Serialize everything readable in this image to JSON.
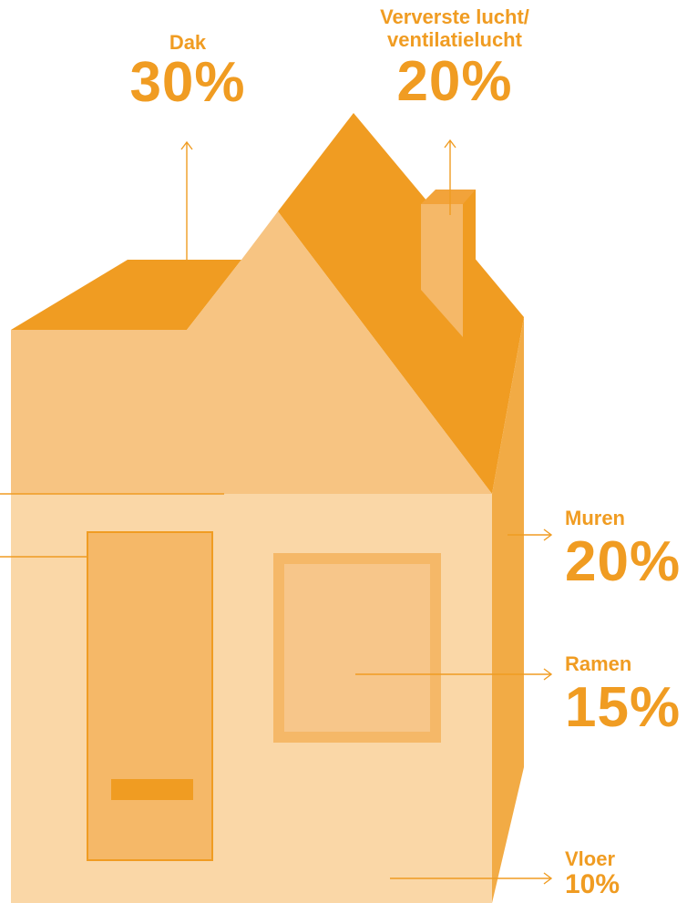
{
  "colors": {
    "roof_dark": "#f09c22",
    "roof_side": "#f0a42e",
    "gable": "#f7c482",
    "wall_front": "#fad7a7",
    "wall_side": "#f2ab45",
    "door": "#f5b868",
    "window": "#f7c68a",
    "arrow": "#f09c22",
    "text": "#f09c22"
  },
  "labels": {
    "dak": {
      "name": "Dak",
      "value": "30%"
    },
    "ventilatie": {
      "name_line1": "Ververste lucht/",
      "name_line2": "ventilatielucht",
      "value": "20%"
    },
    "muren": {
      "name": "Muren",
      "value": "20%"
    },
    "ramen": {
      "name": "Ramen",
      "value": "15%"
    },
    "vloer": {
      "name": "Vloer",
      "value": "10%"
    }
  }
}
